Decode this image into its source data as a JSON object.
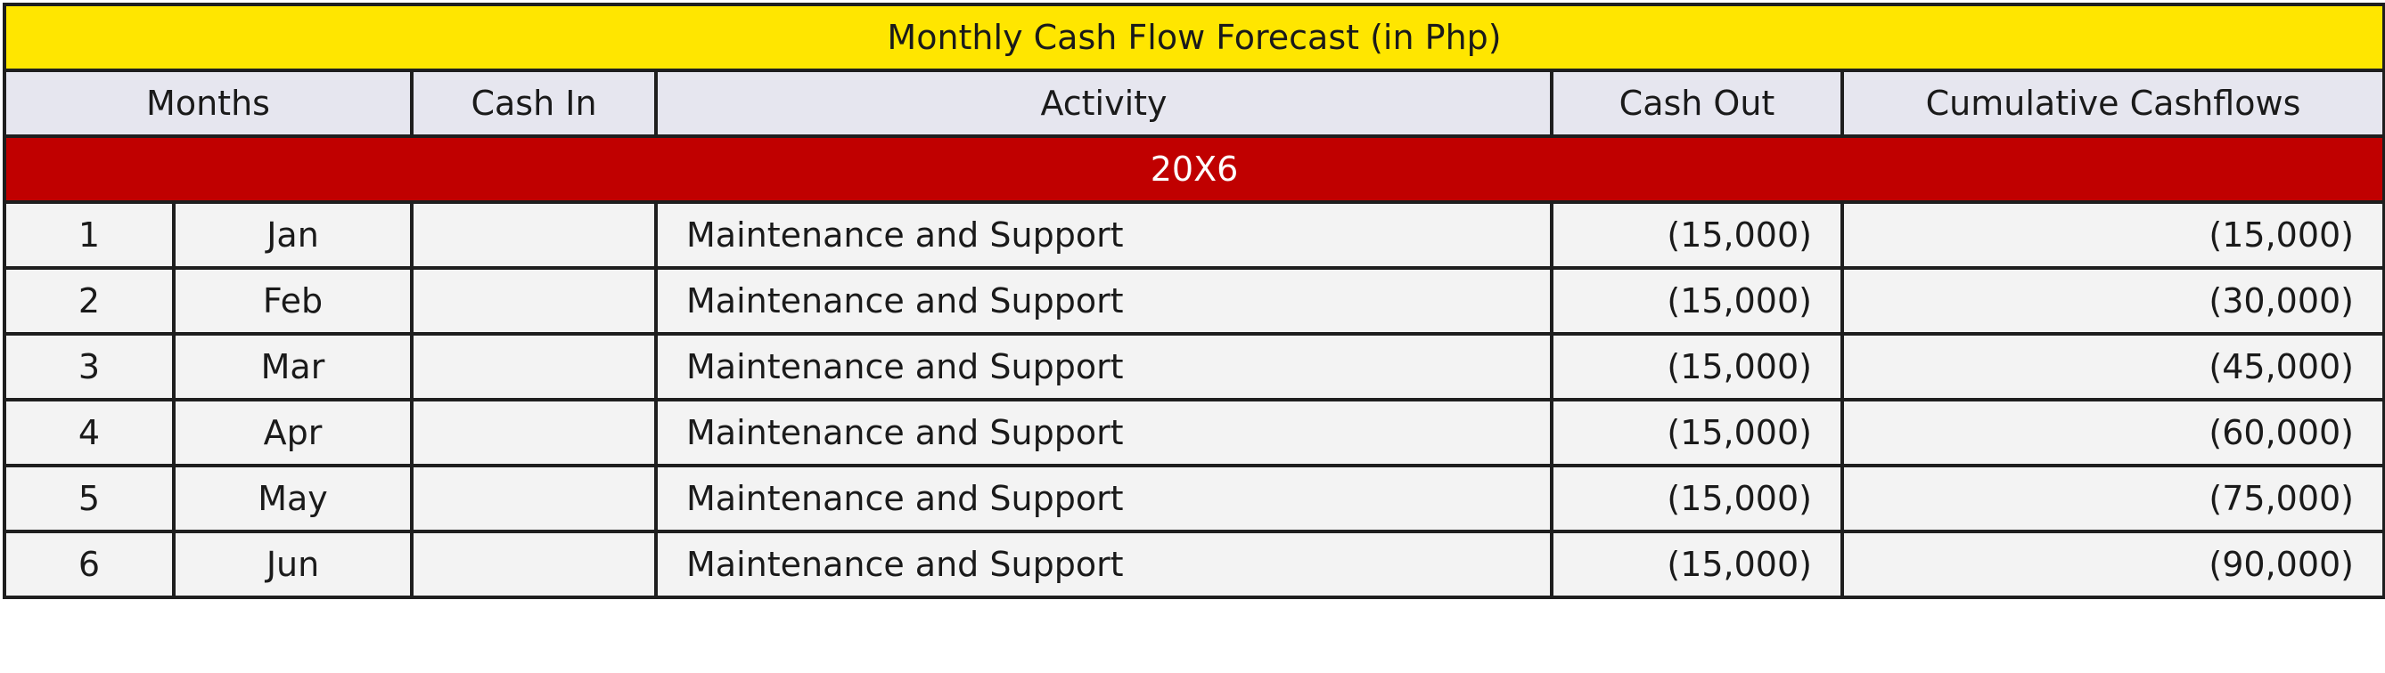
{
  "table": {
    "title": "Monthly Cash Flow Forecast (in Php)",
    "headers": {
      "months": "Months",
      "cash_in": "Cash In",
      "activity": "Activity",
      "cash_out": "Cash Out",
      "cumulative": "Cumulative Cashflows"
    },
    "year_label": "20X6",
    "rows": [
      {
        "num": "1",
        "month": "Jan",
        "cash_in": "",
        "activity": "Maintenance and Support",
        "cash_out": "(15,000)",
        "cumulative": "(15,000)"
      },
      {
        "num": "2",
        "month": "Feb",
        "cash_in": "",
        "activity": "Maintenance and Support",
        "cash_out": "(15,000)",
        "cumulative": "(30,000)"
      },
      {
        "num": "3",
        "month": "Mar",
        "cash_in": "",
        "activity": "Maintenance and Support",
        "cash_out": "(15,000)",
        "cumulative": "(45,000)"
      },
      {
        "num": "4",
        "month": "Apr",
        "cash_in": "",
        "activity": "Maintenance and Support",
        "cash_out": "(15,000)",
        "cumulative": "(60,000)"
      },
      {
        "num": "5",
        "month": "May",
        "cash_in": "",
        "activity": "Maintenance and Support",
        "cash_out": "(15,000)",
        "cumulative": "(75,000)"
      },
      {
        "num": "6",
        "month": "Jun",
        "cash_in": "",
        "activity": "Maintenance and Support",
        "cash_out": "(15,000)",
        "cumulative": "(90,000)"
      }
    ]
  },
  "colors": {
    "title_background": "#ffe600",
    "header_background": "#e6e6ef",
    "year_background": "#c00000",
    "row_background": "#f3f3f3",
    "border": "#1e1e1e"
  }
}
